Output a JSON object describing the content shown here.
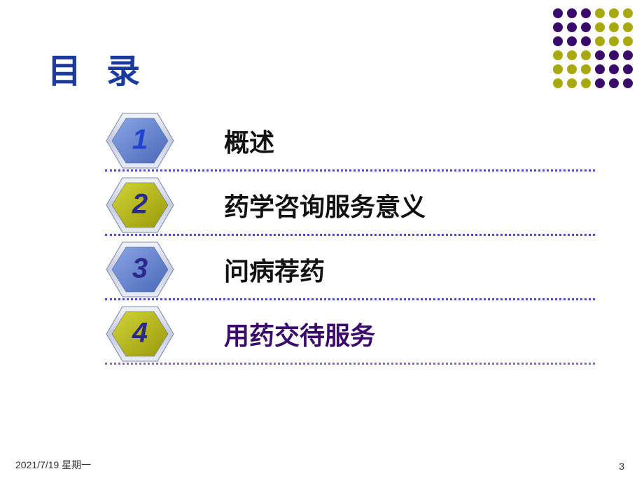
{
  "title": {
    "text": "目 录",
    "color": "#1a3a9e"
  },
  "decoration": {
    "purple": "#3a0a6b",
    "olive": "#a8a810",
    "rows": 6,
    "cols": 6
  },
  "items": [
    {
      "num": "1",
      "label": "概述",
      "hex_fill_light": "#8aa6e6",
      "hex_fill_dark": "#4a68b8",
      "num_color": "#2244cc",
      "label_color": "#111",
      "line_color": "#4a4adf"
    },
    {
      "num": "2",
      "label": "药学咨询服务意义",
      "hex_fill_light": "#d2d238",
      "hex_fill_dark": "#9a9a0a",
      "num_color": "#2a2a8a",
      "label_color": "#111",
      "line_color": "#4a4adf"
    },
    {
      "num": "3",
      "label": "问病荐药",
      "hex_fill_light": "#8aa6e6",
      "hex_fill_dark": "#4a68b8",
      "num_color": "#2a2a8a",
      "label_color": "#111",
      "line_color": "#4a4adf"
    },
    {
      "num": "4",
      "label": "用药交待服务",
      "hex_fill_light": "#d2d238",
      "hex_fill_dark": "#9a9a0a",
      "num_color": "#2a2a8a",
      "label_color": "#3a0a6b",
      "line_color": "#8a6ab0"
    }
  ],
  "footer": {
    "date": "2021/7/19 星期一",
    "page": "3"
  },
  "hex_border": "#b8c0d8"
}
